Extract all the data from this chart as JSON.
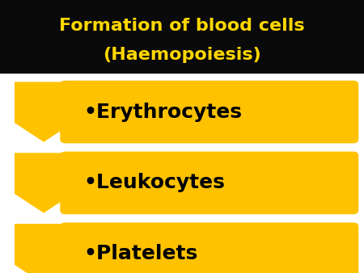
{
  "title_line1": "Formation of blood cells",
  "title_line2": "(Haemopoiesis)",
  "title_color": "#FFD700",
  "title_bg_color": "#0a0a0a",
  "items": [
    "Erythrocytes",
    "Leukocytes",
    "Platelets"
  ],
  "arrow_color": "#FFC200",
  "box_color": "#FFC200",
  "text_color": "#000000",
  "bg_color": "#FFFFFF",
  "title_fontsize": 16,
  "item_fontsize": 18
}
